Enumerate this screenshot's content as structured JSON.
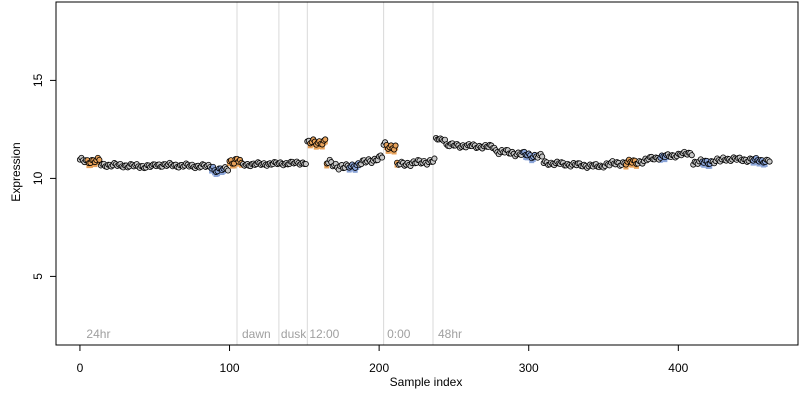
{
  "chart_data": {
    "type": "scatter",
    "title": "",
    "xlabel": "Sample index",
    "ylabel": "Expression",
    "xlim": [
      -16,
      480
    ],
    "ylim": [
      1.5,
      19
    ],
    "x_ticks": [
      0,
      100,
      200,
      300,
      400
    ],
    "y_ticks": [
      5,
      10,
      15
    ],
    "grid": false,
    "legend": "none",
    "colors": {
      "point_fill": "#c8c8c8",
      "point_stroke": "#000000",
      "highlight_orange": "#e8a25a",
      "highlight_blue": "#8aa4d8",
      "vline": "#d9d9d9",
      "annotation": "#a0a0a0"
    },
    "vlines": [
      105,
      133,
      152,
      203,
      236
    ],
    "annotations": [
      {
        "x": 3,
        "text": "24hr"
      },
      {
        "x": 107,
        "text": "dawn"
      },
      {
        "x": 133,
        "text": "dusk"
      },
      {
        "x": 152,
        "text": "12:00"
      },
      {
        "x": 204,
        "text": "0:00"
      },
      {
        "x": 238,
        "text": "48hr"
      }
    ],
    "segments": [
      {
        "x0": 0,
        "x1": 14,
        "y0": 10.9,
        "y1": 10.9,
        "amp": 0.15
      },
      {
        "x0": 14,
        "x1": 50,
        "y0": 10.7,
        "y1": 10.6,
        "amp": 0.12
      },
      {
        "x0": 50,
        "x1": 90,
        "y0": 10.7,
        "y1": 10.6,
        "amp": 0.12
      },
      {
        "x0": 90,
        "x1": 100,
        "y0": 10.4,
        "y1": 10.5,
        "amp": 0.12
      },
      {
        "x0": 100,
        "x1": 108,
        "y0": 10.9,
        "y1": 10.9,
        "amp": 0.2
      },
      {
        "x0": 108,
        "x1": 152,
        "y0": 10.7,
        "y1": 10.8,
        "amp": 0.1
      },
      {
        "x0": 152,
        "x1": 165,
        "y0": 11.8,
        "y1": 11.9,
        "amp": 0.18
      },
      {
        "x0": 165,
        "x1": 180,
        "y0": 10.8,
        "y1": 10.5,
        "amp": 0.2
      },
      {
        "x0": 180,
        "x1": 203,
        "y0": 10.6,
        "y1": 11.1,
        "amp": 0.15
      },
      {
        "x0": 203,
        "x1": 212,
        "y0": 11.7,
        "y1": 11.6,
        "amp": 0.2
      },
      {
        "x0": 212,
        "x1": 238,
        "y0": 10.7,
        "y1": 10.9,
        "amp": 0.15
      },
      {
        "x0": 238,
        "x1": 245,
        "y0": 12.0,
        "y1": 12.0,
        "amp": 0.08
      },
      {
        "x0": 245,
        "x1": 278,
        "y0": 11.7,
        "y1": 11.6,
        "amp": 0.12
      },
      {
        "x0": 278,
        "x1": 310,
        "y0": 11.4,
        "y1": 11.1,
        "amp": 0.15
      },
      {
        "x0": 310,
        "x1": 350,
        "y0": 10.8,
        "y1": 10.6,
        "amp": 0.12
      },
      {
        "x0": 350,
        "x1": 380,
        "y0": 10.7,
        "y1": 10.9,
        "amp": 0.15
      },
      {
        "x0": 380,
        "x1": 410,
        "y0": 11.0,
        "y1": 11.3,
        "amp": 0.12
      },
      {
        "x0": 410,
        "x1": 430,
        "y0": 10.8,
        "y1": 10.9,
        "amp": 0.15
      },
      {
        "x0": 430,
        "x1": 462,
        "y0": 11.0,
        "y1": 10.9,
        "amp": 0.12
      }
    ],
    "highlight_orange_ranges": [
      [
        5,
        13
      ],
      [
        100,
        108
      ],
      [
        154,
        165
      ],
      [
        205,
        212
      ],
      [
        365,
        372
      ]
    ],
    "highlight_blue_ranges": [
      [
        88,
        96
      ],
      [
        180,
        186
      ],
      [
        296,
        304
      ],
      [
        388,
        392
      ],
      [
        416,
        422
      ],
      [
        450,
        458
      ]
    ]
  }
}
